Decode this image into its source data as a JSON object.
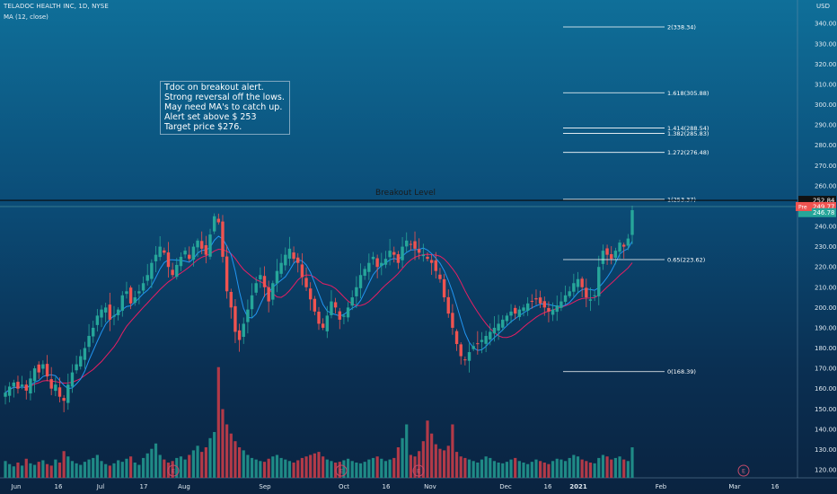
{
  "header": {
    "title": "TELADOC HEALTH INC, 1D, NYSE",
    "indicator": "MA (12, close)",
    "currency": "USD"
  },
  "annotation": {
    "lines": [
      "Tdoc on breakout alert.",
      "Strong reversal off the lows.",
      "May need MA's to catch up.",
      "Alert set above $ 253",
      "Target price $276."
    ]
  },
  "breakout_label": "Breakout Level",
  "colors": {
    "up": "#26a69a",
    "down": "#ef5350",
    "ma_fast": "#2196f3",
    "ma_slow": "#e91e63",
    "fib": "#ffffff",
    "volume_up": "#1f8a86",
    "volume_down": "#b23a48"
  },
  "chart_data": {
    "type": "candlestick",
    "ylim": [
      115,
      345
    ],
    "yticks": [
      120,
      130,
      140,
      150,
      160,
      170,
      180,
      190,
      200,
      210,
      220,
      230,
      240,
      250,
      260,
      270,
      280,
      290,
      300,
      310,
      320,
      330,
      340
    ],
    "xticks": [
      "Jun",
      "16",
      "Jul",
      "17",
      "Aug",
      "Sep",
      "Oct",
      "16",
      "Nov",
      "Dec",
      "16",
      "2021",
      "Feb",
      "Mar",
      "16"
    ],
    "price_labels": [
      {
        "text": "252.84",
        "value": 252.84,
        "style": "dark"
      },
      {
        "text": "249.77",
        "value": 249.77,
        "style": "red"
      },
      {
        "text": "246.78",
        "value": 246.78,
        "style": "teal"
      }
    ],
    "price_tag": "Pre",
    "breakout_level": 252.84,
    "fib_levels": [
      {
        "label": "2(338.34)",
        "value": 338.34
      },
      {
        "label": "1.618(305.88)",
        "value": 305.88
      },
      {
        "label": "1.414(288.54)",
        "value": 288.54
      },
      {
        "label": "1.382(285.83)",
        "value": 285.83
      },
      {
        "label": "1.272(276.48)",
        "value": 276.48
      },
      {
        "label": "1(253.37)",
        "value": 253.37
      },
      {
        "label": "0.65(223.62)",
        "value": 223.62
      },
      {
        "label": "0(168.39)",
        "value": 168.39
      }
    ],
    "event_markers": [
      "E",
      "E",
      "E",
      "E"
    ],
    "closes": [
      158,
      161,
      163,
      160,
      162,
      159,
      165,
      170,
      168,
      172,
      166,
      160,
      162,
      156,
      154,
      162,
      168,
      172,
      176,
      180,
      186,
      190,
      196,
      199,
      200,
      194,
      196,
      199,
      206,
      208,
      202,
      205,
      208,
      212,
      216,
      222,
      226,
      230,
      227,
      220,
      216,
      221,
      225,
      228,
      224,
      230,
      233,
      229,
      226,
      236,
      245,
      242,
      225,
      208,
      200,
      188,
      184,
      192,
      199,
      206,
      212,
      216,
      210,
      203,
      212,
      218,
      222,
      226,
      229,
      224,
      222,
      215,
      210,
      204,
      198,
      192,
      190,
      196,
      203,
      200,
      194,
      196,
      200,
      205,
      210,
      216,
      219,
      222,
      225,
      220,
      222,
      224,
      228,
      226,
      222,
      230,
      233,
      231,
      229,
      227,
      226,
      224,
      222,
      218,
      214,
      205,
      197,
      190,
      182,
      176,
      174,
      178,
      181,
      182,
      184,
      186,
      188,
      190,
      192,
      194,
      196,
      198,
      197,
      199,
      200,
      202,
      203,
      204,
      202,
      200,
      198,
      199,
      201,
      203,
      206,
      208,
      212,
      214,
      210,
      205,
      204,
      206,
      220,
      228,
      226,
      224,
      228,
      232,
      230,
      234,
      248
    ],
    "volumes": [
      22,
      18,
      15,
      20,
      16,
      25,
      19,
      17,
      21,
      23,
      18,
      16,
      24,
      20,
      35,
      28,
      22,
      19,
      17,
      21,
      24,
      26,
      30,
      22,
      18,
      16,
      19,
      23,
      21,
      25,
      28,
      20,
      17,
      26,
      32,
      38,
      45,
      30,
      24,
      20,
      22,
      26,
      28,
      24,
      30,
      36,
      42,
      34,
      40,
      52,
      60,
      145,
      90,
      70,
      58,
      48,
      40,
      36,
      30,
      26,
      24,
      22,
      21,
      25,
      28,
      30,
      26,
      24,
      22,
      20,
      23,
      26,
      28,
      30,
      32,
      34,
      28,
      24,
      22,
      20,
      21,
      23,
      25,
      22,
      20,
      19,
      21,
      24,
      26,
      28,
      25,
      22,
      24,
      26,
      40,
      52,
      70,
      30,
      28,
      35,
      48,
      75,
      58,
      44,
      38,
      36,
      42,
      70,
      34,
      28,
      26,
      24,
      22,
      20,
      24,
      28,
      26,
      22,
      20,
      19,
      21,
      24,
      26,
      22,
      20,
      18,
      21,
      24,
      22,
      20,
      18,
      22,
      25,
      24,
      22,
      26,
      30,
      28,
      24,
      22,
      20,
      19,
      26,
      30,
      28,
      24,
      26,
      28,
      24,
      22,
      40
    ]
  }
}
